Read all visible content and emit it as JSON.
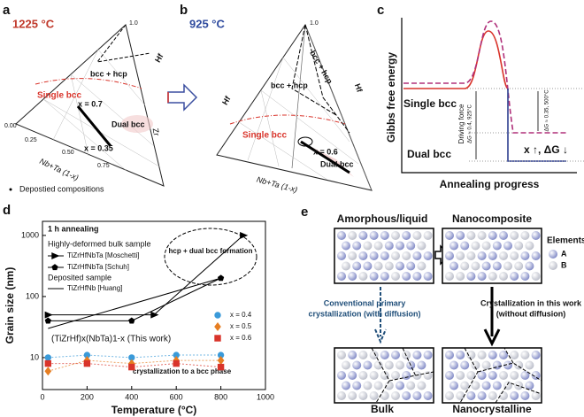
{
  "panels": {
    "a": {
      "letter": "a",
      "temp": "1225 °C",
      "region1": "bcc + hcp",
      "axis_hf": "Hf",
      "region2": "Single bcc",
      "x1": "x = 0.7",
      "region3": "Dual bcc",
      "x2": "x = 0.35",
      "axis_nbta": "Nb+Ta (1-x)",
      "axis_zr": "Zr",
      "ticks": [
        "0.00",
        "0.25",
        "0.50",
        "0.75",
        "1.0"
      ],
      "legend": "Depostied compositions"
    },
    "b": {
      "letter": "b",
      "temp": "925 °C",
      "region1": "bcc + hcp",
      "axis_hf": "Hf",
      "region2": "Single bcc",
      "x1": "x = 0.6",
      "region3": "Dual bcc",
      "axis_nbta": "Nb+Ta (1-x)",
      "tick": "1.0"
    },
    "c": {
      "letter": "c",
      "ylabel": "Gibbs free energy",
      "xlabel": "Annealing progress",
      "single": "Single bcc",
      "dual": "Dual bcc",
      "driving": "Driving force",
      "dg1": "ΔG ≈ 0.4, 925°C",
      "dg2": "ΔG ≈ 0.35, 500°C",
      "trend": "x ↑, ΔG ↓"
    },
    "e": {
      "letter": "e",
      "tl": "Amorphous/liquid",
      "tr": "Nanocomposite",
      "elements": "Elements",
      "a": "A",
      "b": "B",
      "conv1": "Conventional primary",
      "conv2": "crystallization (with diffusion)",
      "work1": "Crystallization in this work",
      "work2": "(without diffusion)",
      "bl": "Bulk",
      "br": "Nanocrystalline"
    }
  },
  "chart_data": {
    "type": "line",
    "letter": "d",
    "note": "1 h annealing",
    "group1": "Highly-deformed bulk sample",
    "group2": "Deposited sample",
    "annotation": "hcp + dual bcc formation",
    "work": "(TiZrHf)x(NbTa)1-x (This work)",
    "annotation2": "crystallization to a bcc phase",
    "xlabel": "Temperature (°C)",
    "ylabel": "Grain size (nm)",
    "xlim": [
      0,
      1000
    ],
    "xticks": [
      0,
      200,
      400,
      600,
      800,
      1000
    ],
    "ylim": [
      3,
      1700
    ],
    "yticks": [
      10,
      100,
      1000
    ],
    "log_y": true,
    "series": [
      {
        "name": "TiZrHfNbTa [Moschetti]",
        "color": "#000000",
        "marker": "triangle",
        "x": [
          25,
          500,
          900
        ],
        "values": [
          50,
          50,
          1000
        ]
      },
      {
        "name": "TiZrHfNbTa [Schuh]",
        "color": "#000000",
        "marker": "pentagon",
        "x": [
          25,
          400,
          800
        ],
        "values": [
          40,
          40,
          200
        ]
      },
      {
        "name": "TiZrHfNb [Huang]",
        "color": "#000000",
        "marker": "none",
        "x": [
          25,
          800
        ],
        "values": [
          30,
          200
        ]
      },
      {
        "name": "x = 0.4",
        "color": "#3a9ad9",
        "marker": "circle",
        "x": [
          25,
          200,
          400,
          600,
          800
        ],
        "values": [
          10,
          11,
          10,
          11,
          11
        ]
      },
      {
        "name": "x = 0.5",
        "color": "#e67e22",
        "marker": "diamond",
        "x": [
          25,
          200,
          400,
          600,
          800
        ],
        "values": [
          6,
          9,
          8,
          9,
          9
        ]
      },
      {
        "name": "x = 0.6",
        "color": "#d9342b",
        "marker": "square",
        "x": [
          25,
          200,
          400,
          600,
          800
        ],
        "values": [
          8,
          8,
          7,
          8,
          7
        ]
      }
    ]
  }
}
